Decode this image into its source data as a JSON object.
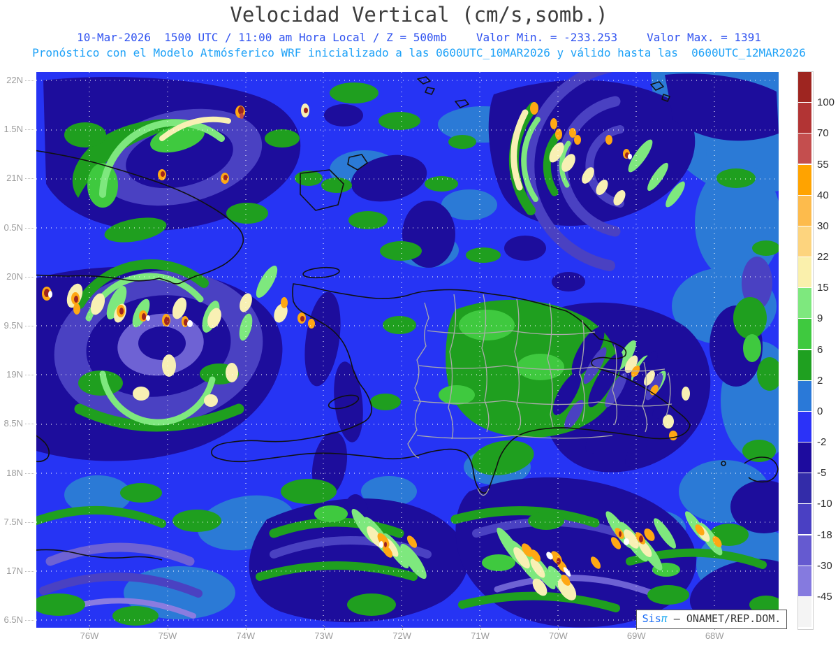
{
  "header": {
    "title": "Velocidad Vertical (cm/s,somb.)",
    "line1_main": "10-Mar-2026  1500 UTC / 11:00 am Hora Local / Z = 500mb",
    "line1_min": "Valor Min. = -233.253",
    "line1_max": "Valor Max. = 1391",
    "line2": "Pronóstico con el Modelo Atmósferico WRF inicializado a las 0600UTC_10MAR2026 y válido hasta las  0600UTC_12MAR2026"
  },
  "map": {
    "y_axis_labels": [
      "22N",
      "1.5N",
      "21N",
      "0.5N",
      "20N",
      "9.5N",
      "19N",
      "8.5N",
      "18N",
      "7.5N",
      "17N",
      "6.5N"
    ],
    "x_axis_labels": [
      "76W",
      "75W",
      "74W",
      "73W",
      "72W",
      "71W",
      "70W",
      "69W",
      "68W"
    ]
  },
  "colorbar": {
    "labels": [
      "100",
      "70",
      "55",
      "40",
      "30",
      "22",
      "15",
      "9",
      "6",
      "2",
      "0",
      "-2",
      "-5",
      "-10",
      "-18",
      "-30",
      "-45"
    ],
    "colors": [
      "#9E2520",
      "#B23434",
      "#C44E4E",
      "#FFA300",
      "#FDBB4C",
      "#FDD47E",
      "#FAF0AC",
      "#7EE87E",
      "#3FC93F",
      "#1FA020",
      "#2A79D8",
      "#2B32F8",
      "#1D0B9E",
      "#332CA9",
      "#4A40C3",
      "#655AD0",
      "#857ADF",
      "#F4F4F4"
    ]
  },
  "watermark": {
    "brand": "Sis",
    "pi": "π",
    "rest": " – ONAMET/REP.DOM."
  },
  "chart_data": {
    "type": "heatmap",
    "title": "Velocidad Vertical (cm/s,somb.)",
    "variable": "vertical velocity (shaded)",
    "units": "cm/s",
    "level": "Z = 500mb",
    "valid_time": "10-Mar-2026 1500 UTC / 11:00 am Hora Local",
    "model_info": "Pronóstico con el Modelo Atmósferico WRF inicializado a las 0600UTC_10MAR2026 y válido hasta las 0600UTC_12MAR2026",
    "value_min": -233.253,
    "value_max": 1391,
    "x": [
      "76W",
      "75W",
      "74W",
      "73W",
      "72W",
      "71W",
      "70W",
      "69W",
      "68W"
    ],
    "y": [
      "22N",
      "1.5N",
      "21N",
      "0.5N",
      "20N",
      "9.5N",
      "19N",
      "8.5N",
      "18N",
      "7.5N",
      "17N",
      "6.5N"
    ],
    "contour_levels": [
      100,
      70,
      55,
      40,
      30,
      22,
      15,
      9,
      6,
      2,
      0,
      -2,
      -5,
      -10,
      -18,
      -30,
      -45
    ],
    "palette": [
      "#9E2520",
      "#B23434",
      "#C44E4E",
      "#FFA300",
      "#FDBB4C",
      "#FDD47E",
      "#FAF0AC",
      "#7EE87E",
      "#3FC93F",
      "#1FA020",
      "#2A79D8",
      "#2B32F8",
      "#1D0B9E",
      "#332CA9",
      "#4A40C3",
      "#655AD0",
      "#857ADF",
      "#F4F4F4"
    ],
    "legend_position": "right",
    "grid": true,
    "region": "Hispaniola / Caribbean (WRF domain)"
  }
}
